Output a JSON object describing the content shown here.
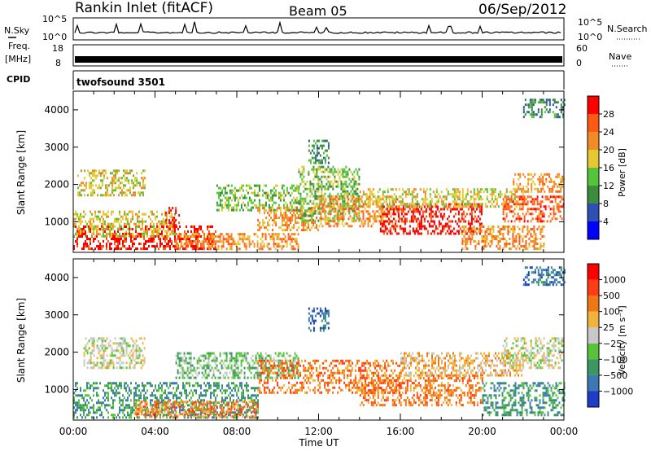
{
  "header": {
    "station": "Rankin Inlet (fitACF)",
    "beam": "Beam 05",
    "date": "06/Sep/2012"
  },
  "noise_panel": {
    "left_label": "N.Sky",
    "right_label": "N.Search",
    "left_ticks": [
      "10^5",
      "10^0"
    ],
    "right_ticks": [
      "10^5",
      "10^0"
    ]
  },
  "freq_panel": {
    "left_label_1": "Freq.",
    "left_label_2": "[MHz]",
    "right_label": "Nave",
    "left_ticks": [
      "18",
      "8"
    ],
    "right_ticks": [
      "60",
      "0"
    ]
  },
  "cpid_panel": {
    "label": "CPID",
    "program": "twofsound 3501"
  },
  "chart_data": [
    {
      "type": "heatmap",
      "title": "",
      "xlabel": "",
      "ylabel": "Slant Range [km]",
      "x_ticks": [
        "00:00",
        "04:00",
        "08:00",
        "12:00",
        "16:00",
        "20:00",
        "00:00"
      ],
      "y_ticks": [
        1000,
        2000,
        3000,
        4000
      ],
      "xlim_hours": [
        0,
        24
      ],
      "ylim": [
        180,
        4500
      ],
      "colorbar": {
        "label": "Power [dB]",
        "ticks": [
          "4",
          "8",
          "12",
          "16",
          "20",
          "24",
          "28"
        ],
        "colors": [
          "#0000ff",
          "#2f4fb4",
          "#3c8c3c",
          "#55c43a",
          "#e6c832",
          "#f08c28",
          "#ff5a14",
          "#ff0000"
        ]
      },
      "regions": [
        {
          "t0": 0,
          "t1": 7,
          "r0": 250,
          "r1": 900,
          "level": 7
        },
        {
          "t0": 0,
          "t1": 5,
          "r0": 600,
          "r1": 1300,
          "level": 4
        },
        {
          "t0": 0.2,
          "t1": 3.5,
          "r0": 1700,
          "r1": 2400,
          "level": 4
        },
        {
          "t0": 4.5,
          "t1": 5.2,
          "r0": 900,
          "r1": 1400,
          "level": 7
        },
        {
          "t0": 5,
          "t1": 11,
          "r0": 250,
          "r1": 700,
          "level": 5
        },
        {
          "t0": 7,
          "t1": 11,
          "r0": 1300,
          "r1": 2000,
          "level": 3
        },
        {
          "t0": 9,
          "t1": 12,
          "r0": 800,
          "r1": 1400,
          "level": 5
        },
        {
          "t0": 11,
          "t1": 14,
          "r0": 1000,
          "r1": 2500,
          "level": 3
        },
        {
          "t0": 11.5,
          "t1": 12.5,
          "r0": 2600,
          "r1": 3200,
          "level": 2
        },
        {
          "t0": 12,
          "t1": 16,
          "r0": 900,
          "r1": 1700,
          "level": 5
        },
        {
          "t0": 15,
          "t1": 20,
          "r0": 700,
          "r1": 1500,
          "level": 7
        },
        {
          "t0": 14,
          "t1": 22,
          "r0": 1400,
          "r1": 1900,
          "level": 4
        },
        {
          "t0": 19,
          "t1": 23,
          "r0": 300,
          "r1": 900,
          "level": 5
        },
        {
          "t0": 21,
          "t1": 24,
          "r0": 1000,
          "r1": 1700,
          "level": 6
        },
        {
          "t0": 21.5,
          "t1": 24,
          "r0": 1800,
          "r1": 2300,
          "level": 5
        },
        {
          "t0": 22,
          "t1": 24,
          "r0": 3800,
          "r1": 4300,
          "level": 2
        }
      ]
    },
    {
      "type": "heatmap",
      "title": "",
      "xlabel": "Time UT",
      "ylabel": "Slant Range [km]",
      "x_ticks": [
        "00:00",
        "04:00",
        "08:00",
        "12:00",
        "16:00",
        "20:00",
        "00:00"
      ],
      "y_ticks": [
        1000,
        2000,
        3000,
        4000
      ],
      "xlim_hours": [
        0,
        24
      ],
      "ylim": [
        180,
        4500
      ],
      "colorbar": {
        "label": "Velocity [m s⁻¹]",
        "ticks": [
          "1000",
          "500",
          "100",
          "25",
          "−25",
          "−100",
          "−500",
          "−1000"
        ],
        "colors": [
          "#1e3cc8",
          "#3c78b4",
          "#3c9664",
          "#55c43a",
          "#c8c8c8",
          "#f0b43c",
          "#f07814",
          "#ff3c14",
          "#ff0000"
        ]
      },
      "regions": [
        {
          "t0": 0,
          "t1": 9,
          "r0": 250,
          "r1": 1200,
          "level": 2
        },
        {
          "t0": 0.5,
          "t1": 3.5,
          "r0": 1600,
          "r1": 2400,
          "level": 4
        },
        {
          "t0": 3,
          "t1": 9,
          "r0": 250,
          "r1": 700,
          "level": 6
        },
        {
          "t0": 5,
          "t1": 11,
          "r0": 1300,
          "r1": 2000,
          "level": 3
        },
        {
          "t0": 9,
          "t1": 16,
          "r0": 900,
          "r1": 1800,
          "level": 6
        },
        {
          "t0": 11.5,
          "t1": 12.5,
          "r0": 2600,
          "r1": 3200,
          "level": 1
        },
        {
          "t0": 14,
          "t1": 20,
          "r0": 600,
          "r1": 1400,
          "level": 6
        },
        {
          "t0": 16,
          "t1": 22,
          "r0": 1400,
          "r1": 2000,
          "level": 5
        },
        {
          "t0": 20,
          "t1": 24,
          "r0": 300,
          "r1": 1200,
          "level": 2
        },
        {
          "t0": 21,
          "t1": 24,
          "r0": 1600,
          "r1": 2400,
          "level": 4
        },
        {
          "t0": 22,
          "t1": 24,
          "r0": 3800,
          "r1": 4300,
          "level": 1
        }
      ]
    }
  ]
}
